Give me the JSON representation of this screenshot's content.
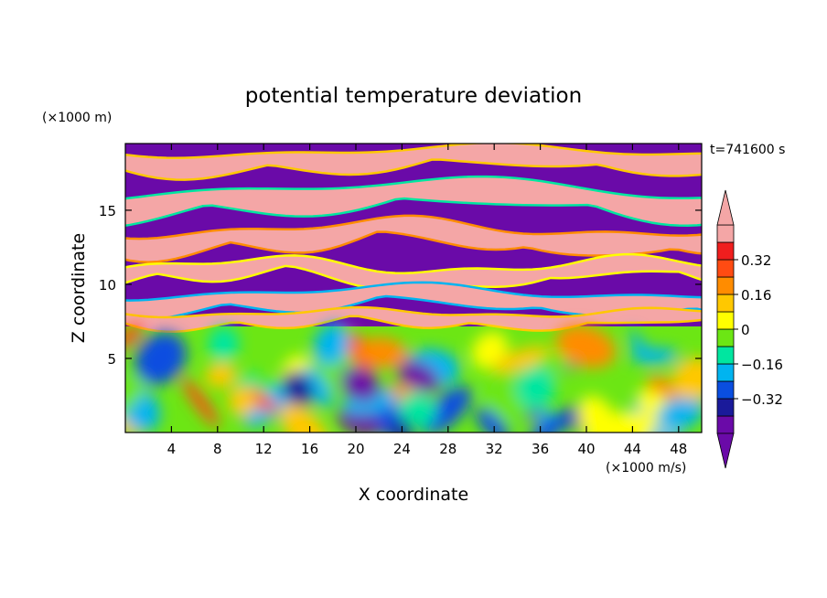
{
  "chart_data": {
    "type": "heatmap",
    "title": "potential temperature deviation",
    "xlabel": "X coordinate",
    "ylabel": "Z coordinate",
    "x_unit": "(×1000 m/s)",
    "y_unit": "(×1000 m)",
    "time_label": "t=741600 s",
    "xlim": [
      0,
      50
    ],
    "ylim": [
      0,
      19.5
    ],
    "xticks": [
      4,
      8,
      12,
      16,
      20,
      24,
      28,
      32,
      36,
      40,
      44,
      48
    ],
    "yticks": [
      5,
      10,
      15
    ],
    "colorbar": {
      "levels": [
        -0.48,
        -0.4,
        -0.32,
        -0.24,
        -0.16,
        -0.08,
        0,
        0.08,
        0.16,
        0.24,
        0.32,
        0.4
      ],
      "labeled_ticks": [
        -0.32,
        -0.16,
        0,
        0.16,
        0.32
      ],
      "tick_labels": [
        "−0.32",
        "−0.16",
        "0",
        "0.16",
        "0.32"
      ],
      "colors": [
        "#6a0aa8",
        "#1a1a9a",
        "#0a4ee0",
        "#00b4f0",
        "#00e6a0",
        "#6ce614",
        "#ffff00",
        "#ffc800",
        "#ff8c00",
        "#ff4b12",
        "#f01e1e",
        "#f4a6a6"
      ],
      "extend": "both"
    }
  }
}
